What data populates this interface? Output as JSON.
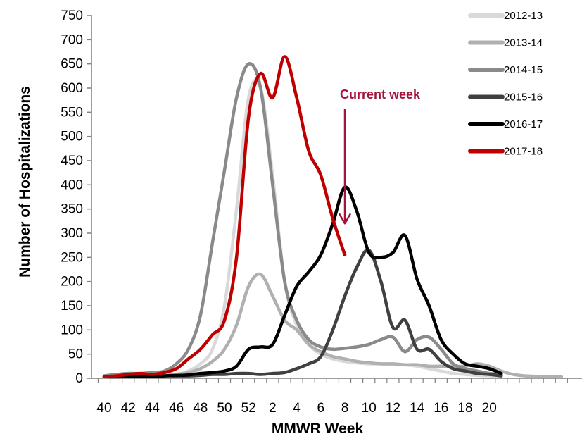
{
  "chart_data": {
    "type": "line",
    "title": "",
    "xlabel": "MMWR Week",
    "ylabel": "Number of Hospitalizations",
    "ylim": [
      0,
      750
    ],
    "yticks": [
      0,
      50,
      100,
      150,
      200,
      250,
      300,
      350,
      400,
      450,
      500,
      550,
      600,
      650,
      700,
      750
    ],
    "week_order": [
      40,
      41,
      42,
      43,
      44,
      45,
      46,
      47,
      48,
      49,
      50,
      51,
      52,
      1,
      2,
      3,
      4,
      5,
      6,
      7,
      8,
      9,
      10,
      11,
      12,
      13,
      14,
      15,
      16,
      17,
      18,
      19,
      20,
      21,
      22,
      23,
      24,
      25,
      26,
      27,
      28,
      29,
      30,
      31,
      32,
      33,
      34,
      35,
      36,
      37,
      38,
      39
    ],
    "xtick_labels": [
      "40",
      "42",
      "44",
      "46",
      "48",
      "50",
      "52",
      "2",
      "4",
      "6",
      "8",
      "10",
      "12",
      "14",
      "16",
      "18",
      "20"
    ],
    "grid": false,
    "legend_position": "top-right",
    "series": [
      {
        "name": "2012-13",
        "color": "#d9d9d9",
        "width": 4.5,
        "values": [
          2,
          3,
          4,
          5,
          4,
          5,
          8,
          15,
          30,
          60,
          150,
          350,
          580,
          600,
          420,
          200,
          110,
          70,
          50,
          40,
          35,
          32,
          30,
          30,
          28,
          28,
          25,
          20,
          15,
          10,
          8,
          6,
          5,
          4
        ]
      },
      {
        "name": "2013-14",
        "color": "#b0b0b0",
        "width": 4.5,
        "values": [
          3,
          4,
          5,
          5,
          5,
          6,
          8,
          12,
          20,
          35,
          60,
          110,
          190,
          215,
          170,
          120,
          100,
          70,
          55,
          45,
          40,
          35,
          32,
          30,
          30,
          28,
          28,
          25,
          25,
          25,
          25,
          30,
          25,
          15,
          8,
          5,
          4,
          4,
          3
        ]
      },
      {
        "name": "2014-15",
        "color": "#8a8a8a",
        "width": 4.5,
        "values": [
          5,
          8,
          10,
          10,
          12,
          15,
          30,
          60,
          130,
          280,
          430,
          580,
          650,
          600,
          400,
          200,
          120,
          80,
          65,
          60,
          62,
          65,
          70,
          80,
          85,
          55,
          80,
          85,
          60,
          30,
          20,
          15,
          10,
          8
        ]
      },
      {
        "name": "2015-16",
        "color": "#404040",
        "width": 4.5,
        "values": [
          3,
          3,
          4,
          4,
          4,
          5,
          5,
          5,
          6,
          8,
          8,
          10,
          10,
          8,
          10,
          12,
          20,
          30,
          45,
          100,
          170,
          230,
          265,
          200,
          105,
          120,
          60,
          60,
          35,
          20,
          15,
          10,
          8,
          5
        ]
      },
      {
        "name": "2016-17",
        "color": "#000000",
        "width": 4.5,
        "values": [
          3,
          3,
          4,
          4,
          4,
          5,
          6,
          7,
          10,
          12,
          15,
          25,
          60,
          65,
          70,
          130,
          190,
          220,
          255,
          320,
          395,
          345,
          260,
          250,
          260,
          295,
          205,
          150,
          80,
          50,
          30,
          25,
          20,
          10
        ]
      },
      {
        "name": "2017-18",
        "color": "#c00000",
        "width": 4.5,
        "values": [
          3,
          5,
          8,
          10,
          8,
          12,
          20,
          40,
          60,
          90,
          120,
          250,
          540,
          630,
          580,
          665,
          580,
          470,
          420,
          330,
          255
        ]
      }
    ],
    "annotations": [
      {
        "text": "Current week",
        "color": "#a3143c",
        "x_index": 20,
        "y_start": 560,
        "y_end": 320
      }
    ]
  }
}
